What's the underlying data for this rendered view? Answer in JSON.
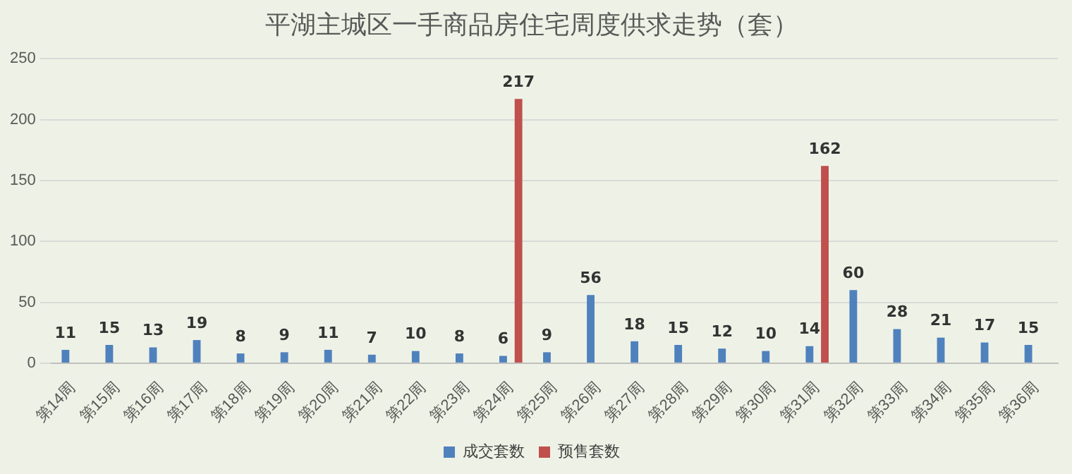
{
  "chart_data": {
    "type": "bar",
    "title": "平湖主城区一手商品房住宅周度供求走势（套）",
    "categories": [
      "第14周",
      "第15周",
      "第16周",
      "第17周",
      "第18周",
      "第19周",
      "第20周",
      "第21周",
      "第22周",
      "第23周",
      "第24周",
      "第25周",
      "第26周",
      "第27周",
      "第28周",
      "第29周",
      "第30周",
      "第31周",
      "第32周",
      "第33周",
      "第34周",
      "第35周",
      "第36周"
    ],
    "series": [
      {
        "name": "成交套数",
        "color": "#4f81bd",
        "values": [
          11,
          15,
          13,
          19,
          8,
          9,
          11,
          7,
          10,
          8,
          6,
          9,
          56,
          18,
          15,
          12,
          10,
          14,
          60,
          28,
          21,
          17,
          15
        ]
      },
      {
        "name": "预售套数",
        "color": "#c0504d",
        "values": [
          null,
          null,
          null,
          null,
          null,
          null,
          null,
          null,
          null,
          null,
          217,
          null,
          null,
          null,
          null,
          null,
          null,
          162,
          null,
          null,
          null,
          null,
          null
        ]
      }
    ],
    "ylim": [
      0,
      250
    ],
    "yticks": [
      0,
      50,
      100,
      150,
      200,
      250
    ],
    "grid": "y",
    "legend": "bottom",
    "data_labels": true
  }
}
